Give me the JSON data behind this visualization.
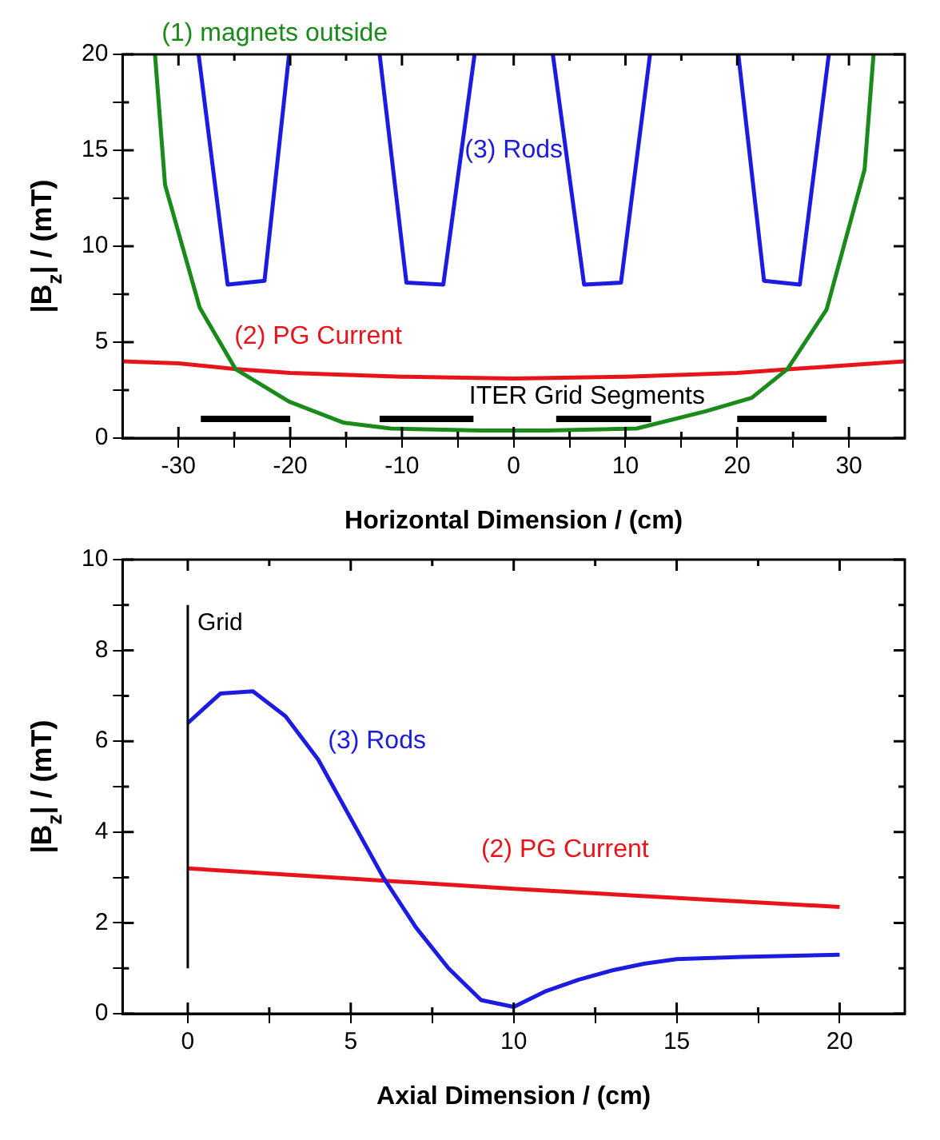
{
  "chart_data": [
    {
      "type": "line",
      "xlabel": "Horizontal Dimension / (cm)",
      "ylabel": "|B$_{z}$| / (mT)",
      "xlim": [
        -35,
        35
      ],
      "ylim": [
        0,
        20
      ],
      "xticks": [
        -30,
        {
          "value": -25,
          "label": null
        },
        -20,
        {
          "value": -15,
          "label": null
        },
        -10,
        {
          "value": -5,
          "label": null
        },
        0,
        {
          "value": 5,
          "label": null
        },
        10,
        {
          "value": 15,
          "label": null
        },
        20,
        {
          "value": 25,
          "label": null
        },
        30
      ],
      "yticks": [
        0,
        {
          "value": 2.5,
          "label": null
        },
        5,
        {
          "value": 7.5,
          "label": null
        },
        10,
        {
          "value": 12.5,
          "label": null
        },
        15,
        {
          "value": 17.5,
          "label": null
        },
        20
      ],
      "legend": false,
      "marker": "none",
      "series": [
        {
          "name": "(1) magnets outside",
          "color": "#1a8a1a",
          "x": [
            -32.1,
            -31.2,
            -28.1,
            -24.9,
            -20.1,
            -15.2,
            -11,
            -3,
            0,
            3,
            11,
            17.2,
            21.3,
            24.5,
            28,
            31.4,
            32.2
          ],
          "values": [
            20,
            13.2,
            6.8,
            3.6,
            1.9,
            0.8,
            0.5,
            0.4,
            0.4,
            0.4,
            0.5,
            1.4,
            2.1,
            3.6,
            6.7,
            14,
            20
          ]
        },
        {
          "name": "(2) PG Current",
          "color": "#e8141c",
          "x": [
            -35,
            -30,
            -25,
            -20,
            -10,
            0,
            10,
            20,
            25,
            30,
            35
          ],
          "values": [
            4.0,
            3.9,
            3.6,
            3.4,
            3.2,
            3.1,
            3.2,
            3.4,
            3.6,
            3.8,
            4.0
          ]
        },
        {
          "name": "(3) Rods",
          "color": "#1c1ce0",
          "x": [
            -28.2,
            -25.6,
            -22.3,
            -20.1,
            -16,
            -12.0,
            -9.6,
            -6.3,
            -3.5,
            0,
            3.5,
            6.3,
            9.6,
            12.2,
            16,
            20.1,
            22.4,
            25.6,
            28.2
          ],
          "values": [
            20,
            8,
            8.2,
            20,
            null,
            20,
            8.1,
            8,
            20,
            null,
            20,
            8,
            8.1,
            20,
            null,
            20,
            8.2,
            8,
            20
          ]
        },
        {
          "name": "ITER Grid Segments",
          "color": "#000000",
          "x": [
            -28,
            -20,
            -16,
            -12,
            -3.6,
            0,
            3.8,
            12.3,
            16,
            20,
            28
          ],
          "values": [
            1,
            1,
            null,
            1,
            1,
            null,
            1,
            1,
            null,
            1,
            1
          ]
        }
      ]
    },
    {
      "type": "line",
      "xlabel": "Axial Dimension / (cm)",
      "ylabel": "|B$_{z}$| / (mT)",
      "xlim": [
        -2,
        22
      ],
      "ylim": [
        0,
        10
      ],
      "xticks": [
        0,
        {
          "value": 2.5,
          "label": null
        },
        5,
        {
          "value": 7.5,
          "label": null
        },
        10,
        {
          "value": 12.5,
          "label": null
        },
        15,
        {
          "value": 17.5,
          "label": null
        },
        20
      ],
      "yticks": [
        0,
        {
          "value": 1,
          "label": null
        },
        2,
        {
          "value": 3,
          "label": null
        },
        4,
        {
          "value": 5,
          "label": null
        },
        6,
        {
          "value": 7,
          "label": null
        },
        8,
        {
          "value": 9,
          "label": null
        },
        10
      ],
      "legend": false,
      "marker": "none",
      "ref_lines": [
        {
          "axis": "x",
          "value": 0,
          "label": "Grid",
          "color": "#000000"
        }
      ],
      "series": [
        {
          "name": "(3) Rods",
          "color": "#1c1ce0",
          "x": [
            0,
            1,
            2,
            3,
            4,
            5,
            6,
            7,
            8,
            9,
            10,
            11,
            12,
            13,
            14,
            15,
            17,
            20
          ],
          "values": [
            6.4,
            7.05,
            7.1,
            6.55,
            5.6,
            4.3,
            3.0,
            1.9,
            1.0,
            0.3,
            0.15,
            0.5,
            0.75,
            0.95,
            1.1,
            1.2,
            1.25,
            1.3
          ]
        },
        {
          "name": "(2) PG Current",
          "color": "#e8141c",
          "x": [
            0,
            10,
            20
          ],
          "values": [
            3.2,
            2.75,
            2.35
          ]
        }
      ]
    }
  ]
}
